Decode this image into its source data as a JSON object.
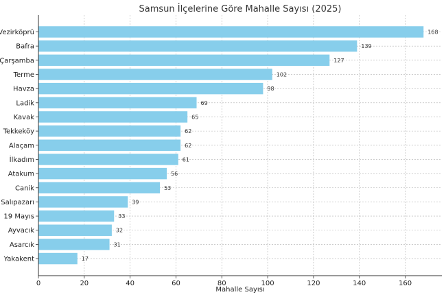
{
  "chart_data": {
    "type": "bar",
    "orientation": "horizontal",
    "title": "Samsun İlçelerine Göre Mahalle Sayısı (2025)",
    "xlabel": "Mahalle Sayısı",
    "ylabel": "",
    "xlim": [
      0,
      176
    ],
    "xticks": [
      0,
      20,
      40,
      60,
      80,
      100,
      120,
      140,
      160
    ],
    "grid": true,
    "bar_color": "#87ceeb",
    "categories": [
      "Vezirköprü",
      "Bafra",
      "Çarşamba",
      "Terme",
      "Havza",
      "Ladik",
      "Kavak",
      "Tekkeköy",
      "Alaçam",
      "İlkadım",
      "Atakum",
      "Canik",
      "Salıpazarı",
      "19 Mayıs",
      "Ayvacık",
      "Asarcık",
      "Yakakent"
    ],
    "values": [
      168,
      139,
      127,
      102,
      98,
      69,
      65,
      62,
      62,
      61,
      56,
      53,
      39,
      33,
      32,
      31,
      17
    ]
  }
}
